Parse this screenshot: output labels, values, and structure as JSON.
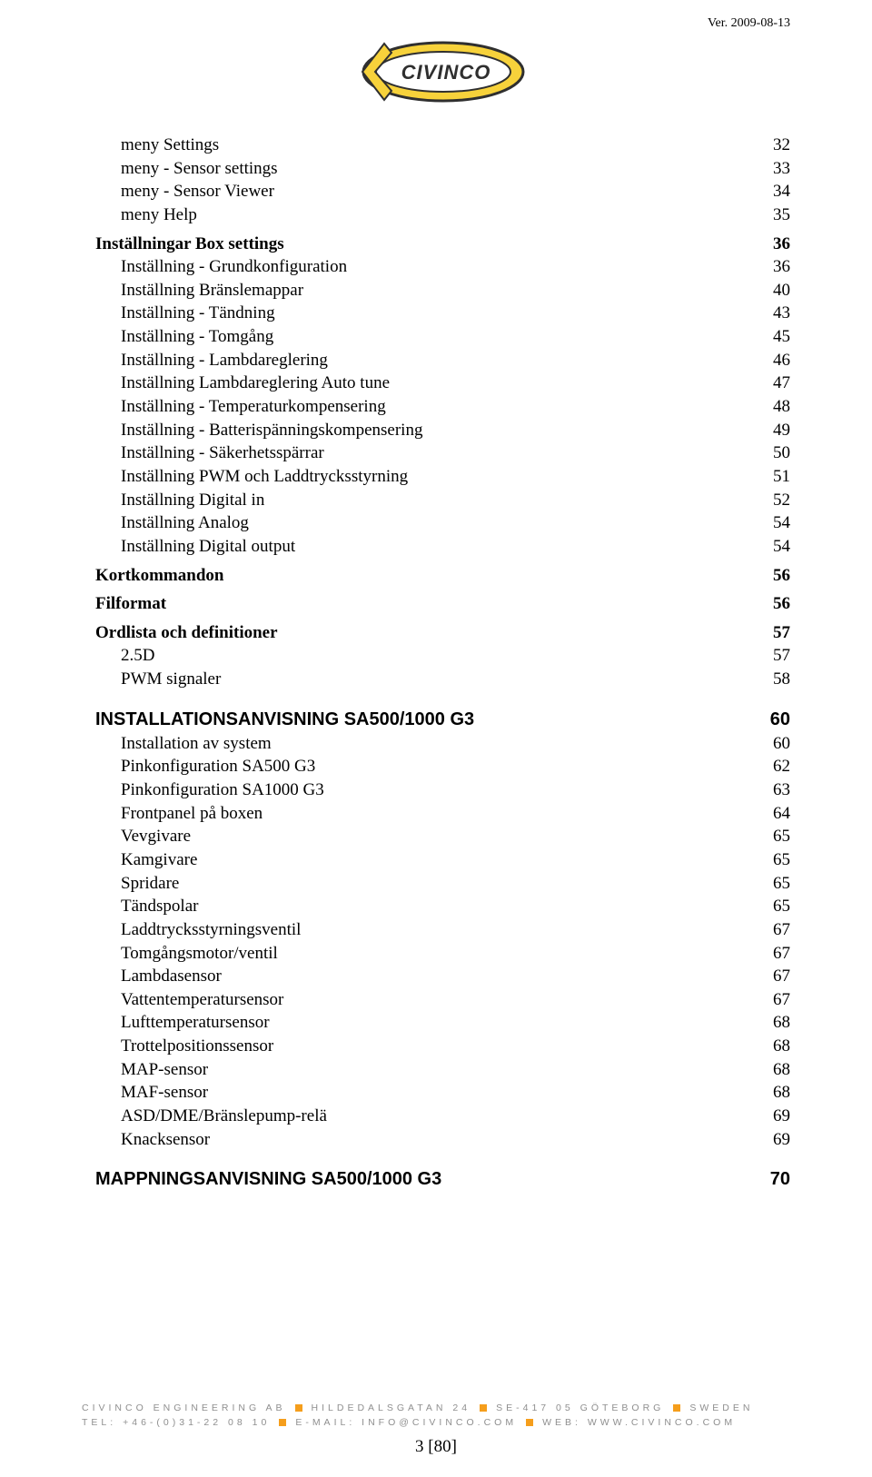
{
  "version_text": "Ver. 2009-08-13",
  "logo_text": "CIVINCO",
  "colors": {
    "logo_yellow": "#f7d23b",
    "logo_stroke": "#2f2f2f",
    "footer_orange": "#f59e1c",
    "footer_grey": "#8f8f8f",
    "text": "#000000",
    "bg": "#ffffff"
  },
  "toc": [
    {
      "level": 1,
      "label": "meny Settings",
      "page": "32"
    },
    {
      "level": 1,
      "label": "meny - Sensor settings",
      "page": "33"
    },
    {
      "level": 1,
      "label": "meny - Sensor Viewer",
      "page": "34"
    },
    {
      "level": 1,
      "label": "meny Help",
      "page": "35"
    },
    {
      "level": 0,
      "label": "Inställningar Box settings",
      "page": "36"
    },
    {
      "level": 1,
      "label": "Inställning - Grundkonfiguration",
      "page": "36"
    },
    {
      "level": 1,
      "label": "Inställning Bränslemappar",
      "page": "40"
    },
    {
      "level": 1,
      "label": "Inställning - Tändning",
      "page": "43"
    },
    {
      "level": 1,
      "label": "Inställning - Tomgång",
      "page": "45"
    },
    {
      "level": 1,
      "label": "Inställning - Lambdareglering",
      "page": "46"
    },
    {
      "level": 1,
      "label": "Inställning Lambdareglering  Auto tune",
      "page": "47"
    },
    {
      "level": 1,
      "label": "Inställning - Temperaturkompensering",
      "page": "48"
    },
    {
      "level": 1,
      "label": "Inställning - Batterispänningskompensering",
      "page": "49"
    },
    {
      "level": 1,
      "label": "Inställning - Säkerhetsspärrar",
      "page": "50"
    },
    {
      "level": 1,
      "label": "Inställning PWM och Laddtrycksstyrning",
      "page": "51"
    },
    {
      "level": 1,
      "label": "Inställning Digital in",
      "page": "52"
    },
    {
      "level": 1,
      "label": "Inställning Analog",
      "page": "54"
    },
    {
      "level": 1,
      "label": "Inställning Digital output",
      "page": "54"
    },
    {
      "level": 0,
      "label": "Kortkommandon",
      "page": "56"
    },
    {
      "level": 0,
      "label": "Filformat",
      "page": "56"
    },
    {
      "level": 0,
      "label": "Ordlista och definitioner",
      "page": "57"
    },
    {
      "level": 1,
      "label": "2.5D",
      "page": "57"
    },
    {
      "level": 1,
      "label": "PWM signaler",
      "page": "58"
    },
    {
      "level": "0h",
      "label": "INSTALLATIONSANVISNING SA500/1000 G3",
      "page": "60"
    },
    {
      "level": 1,
      "label": "Installation av system",
      "page": "60"
    },
    {
      "level": 1,
      "label": "Pinkonfiguration SA500 G3",
      "page": "62"
    },
    {
      "level": 1,
      "label": "Pinkonfiguration SA1000 G3",
      "page": "63"
    },
    {
      "level": 1,
      "label": "Frontpanel på boxen",
      "page": "64"
    },
    {
      "level": 1,
      "label": "Vevgivare",
      "page": "65"
    },
    {
      "level": 1,
      "label": "Kamgivare",
      "page": "65"
    },
    {
      "level": 1,
      "label": "Spridare",
      "page": "65"
    },
    {
      "level": 1,
      "label": "Tändspolar",
      "page": "65"
    },
    {
      "level": 1,
      "label": "Laddtrycksstyrningsventil",
      "page": "67"
    },
    {
      "level": 1,
      "label": "Tomgångsmotor/ventil",
      "page": "67"
    },
    {
      "level": 1,
      "label": "Lambdasensor",
      "page": "67"
    },
    {
      "level": 1,
      "label": "Vattentemperatursensor",
      "page": "67"
    },
    {
      "level": 1,
      "label": "Lufttemperatursensor",
      "page": "68"
    },
    {
      "level": 1,
      "label": "Trottelpositionssensor",
      "page": "68"
    },
    {
      "level": 1,
      "label": "MAP-sensor",
      "page": "68"
    },
    {
      "level": 1,
      "label": "MAF-sensor",
      "page": "68"
    },
    {
      "level": 1,
      "label": "ASD/DME/Bränslepump-relä",
      "page": "69"
    },
    {
      "level": 1,
      "label": "Knacksensor",
      "page": "69"
    },
    {
      "level": "0h",
      "label": "MAPPNINGSANVISNING SA500/1000 G3",
      "page": "70"
    }
  ],
  "footer": {
    "company": "CIVINCO ENGINEERING AB",
    "street": "HILDEDALSGATAN 24",
    "postal": "SE-417 05 GÖTEBORG",
    "country": "SWEDEN",
    "tel_label": "TEL:",
    "tel": "+46-(0)31-22 08 10",
    "email_label": "E-MAIL:",
    "email": "INFO@CIVINCO.COM",
    "web_label": "WEB:",
    "web": "WWW.CIVINCO.COM"
  },
  "page_number": "3 [80]"
}
